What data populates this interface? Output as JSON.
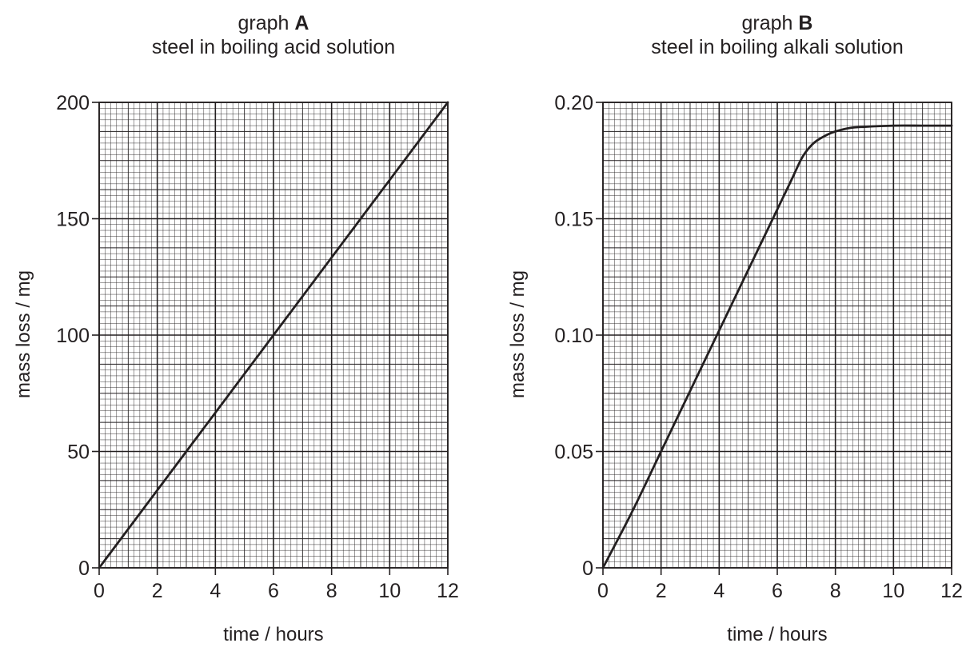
{
  "chart_data": [
    {
      "type": "line",
      "title_prefix": "graph ",
      "title_letter": "A",
      "subtitle": "steel in boiling acid solution",
      "xlabel": "time / hours",
      "ylabel": "mass loss / mg",
      "xlim": [
        0,
        12
      ],
      "ylim": [
        0,
        200
      ],
      "x_ticks": [
        "0",
        "2",
        "4",
        "6",
        "8",
        "10",
        "12"
      ],
      "y_ticks": [
        "0",
        "50",
        "100",
        "150",
        "200"
      ],
      "x_tick_values": [
        0,
        2,
        4,
        6,
        8,
        10,
        12
      ],
      "y_tick_values": [
        0,
        50,
        100,
        150,
        200
      ],
      "grid": true,
      "series": [
        {
          "x": [
            0,
            12
          ],
          "y": [
            0,
            200
          ]
        }
      ]
    },
    {
      "type": "line",
      "title_prefix": "graph ",
      "title_letter": "B",
      "subtitle": "steel in boiling alkali solution",
      "xlabel": "time / hours",
      "ylabel": "mass loss / mg",
      "xlim": [
        0,
        12
      ],
      "ylim": [
        0,
        0.2
      ],
      "x_ticks": [
        "0",
        "2",
        "4",
        "6",
        "8",
        "10",
        "12"
      ],
      "y_ticks": [
        "0",
        "0.05",
        "0.10",
        "0.15",
        "0.20"
      ],
      "x_tick_values": [
        0,
        2,
        4,
        6,
        8,
        10,
        12
      ],
      "y_tick_values": [
        0,
        0.05,
        0.1,
        0.15,
        0.2
      ],
      "grid": true,
      "series": [
        {
          "x": [
            0,
            1,
            2,
            3,
            4,
            5,
            6,
            6.5,
            6.8,
            7,
            7.3,
            7.7,
            8,
            8.5,
            9,
            10,
            11,
            12
          ],
          "y": [
            0,
            0.024,
            0.05,
            0.076,
            0.102,
            0.128,
            0.154,
            0.167,
            0.175,
            0.179,
            0.183,
            0.186,
            0.1875,
            0.189,
            0.1895,
            0.19,
            0.19,
            0.19
          ]
        }
      ]
    }
  ]
}
